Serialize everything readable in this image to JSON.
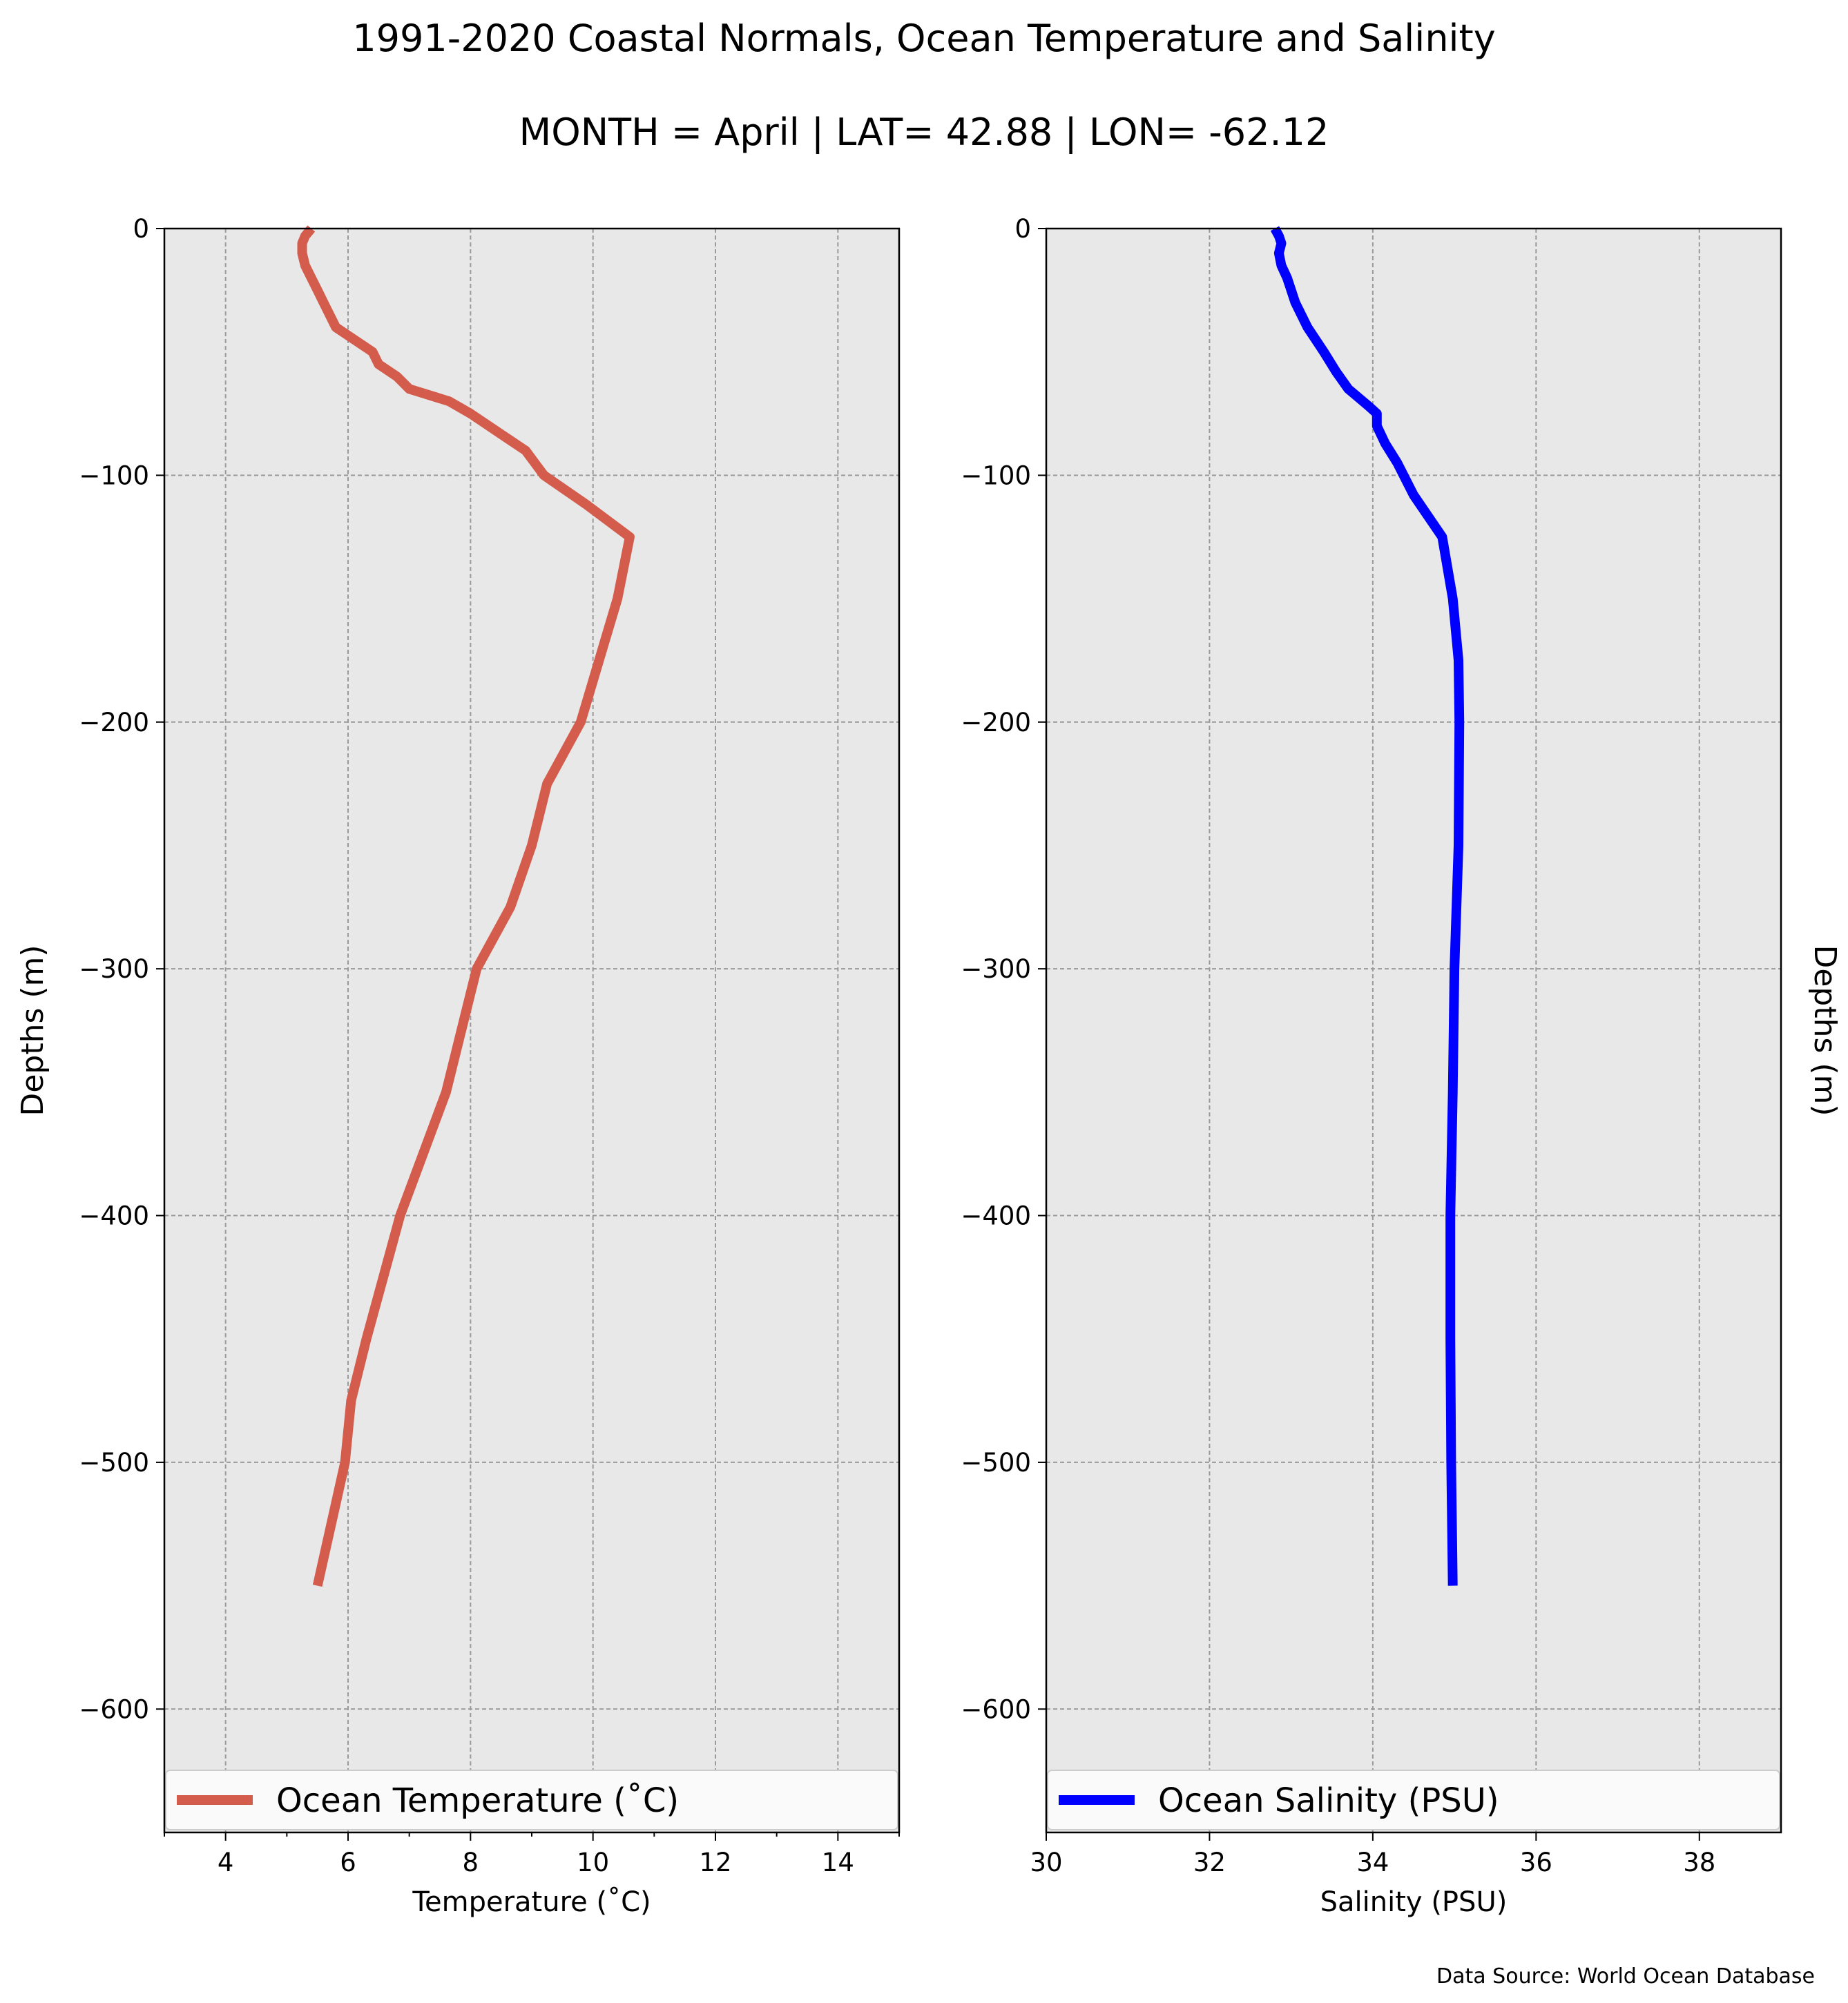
{
  "title": "1991-2020 Coastal Normals, Ocean Temperature and Salinity",
  "subtitle": "MONTH = April | LAT= 42.88 | LON= -62.12",
  "source": "Data Source: World Ocean Database",
  "chart_data": [
    {
      "type": "line",
      "xlabel": "Temperature (˚C)",
      "ylabel": "Depths (m)",
      "xlim": [
        3,
        15
      ],
      "ylim": [
        -650,
        0
      ],
      "xticks": [
        4,
        6,
        8,
        10,
        12,
        14
      ],
      "xtick_labels": [
        "4",
        "6",
        "8",
        "10",
        "12",
        "14"
      ],
      "yticks": [
        0,
        -100,
        -200,
        -300,
        -400,
        -500,
        -600
      ],
      "ytick_labels": [
        "0",
        "−100",
        "−200",
        "−300",
        "−400",
        "−500",
        "−600"
      ],
      "grid": true,
      "legend": "bottom",
      "series": [
        {
          "name": "Ocean Temperature (˚C)",
          "color": "#d35c4c",
          "points": [
            [
              5.4,
              0
            ],
            [
              5.3,
              -3
            ],
            [
              5.25,
              -6
            ],
            [
              5.25,
              -10
            ],
            [
              5.3,
              -15
            ],
            [
              5.4,
              -20
            ],
            [
              5.5,
              -25
            ],
            [
              5.6,
              -30
            ],
            [
              5.8,
              -40
            ],
            [
              6.1,
              -45
            ],
            [
              6.4,
              -50
            ],
            [
              6.5,
              -55
            ],
            [
              6.8,
              -60
            ],
            [
              7.0,
              -65
            ],
            [
              7.65,
              -70
            ],
            [
              8.0,
              -75
            ],
            [
              8.6,
              -85
            ],
            [
              8.9,
              -90
            ],
            [
              9.05,
              -95
            ],
            [
              9.2,
              -100
            ],
            [
              9.9,
              -112
            ],
            [
              10.6,
              -125
            ],
            [
              10.4,
              -150
            ],
            [
              10.1,
              -175
            ],
            [
              9.8,
              -200
            ],
            [
              9.25,
              -225
            ],
            [
              9.0,
              -250
            ],
            [
              8.65,
              -275
            ],
            [
              8.1,
              -300
            ],
            [
              7.85,
              -325
            ],
            [
              7.6,
              -350
            ],
            [
              6.85,
              -400
            ],
            [
              6.3,
              -450
            ],
            [
              6.05,
              -475
            ],
            [
              5.95,
              -500
            ],
            [
              5.5,
              -550
            ]
          ]
        }
      ]
    },
    {
      "type": "line",
      "xlabel": "Salinity (PSU)",
      "ylabel": "Depths (m)",
      "xlim": [
        30,
        39
      ],
      "ylim": [
        -650,
        0
      ],
      "xticks": [
        30,
        32,
        34,
        36,
        38
      ],
      "xtick_labels": [
        "30",
        "32",
        "34",
        "36",
        "38"
      ],
      "yticks": [
        0,
        -100,
        -200,
        -300,
        -400,
        -500,
        -600
      ],
      "ytick_labels": [
        "0",
        "−100",
        "−200",
        "−300",
        "−400",
        "−500",
        "−600"
      ],
      "grid": true,
      "legend": "bottom",
      "series": [
        {
          "name": "Ocean Salinity (PSU)",
          "color": "#0000ff",
          "points": [
            [
              32.8,
              0
            ],
            [
              32.85,
              -3
            ],
            [
              32.88,
              -6
            ],
            [
              32.85,
              -10
            ],
            [
              32.88,
              -15
            ],
            [
              32.95,
              -20
            ],
            [
              33.0,
              -25
            ],
            [
              33.05,
              -30
            ],
            [
              33.2,
              -40
            ],
            [
              33.4,
              -50
            ],
            [
              33.55,
              -58
            ],
            [
              33.7,
              -65
            ],
            [
              33.95,
              -72
            ],
            [
              34.05,
              -75
            ],
            [
              34.05,
              -80
            ],
            [
              34.15,
              -87
            ],
            [
              34.3,
              -95
            ],
            [
              34.5,
              -108
            ],
            [
              34.85,
              -125
            ],
            [
              34.98,
              -150
            ],
            [
              35.05,
              -175
            ],
            [
              35.06,
              -200
            ],
            [
              35.05,
              -250
            ],
            [
              35.0,
              -300
            ],
            [
              34.98,
              -350
            ],
            [
              34.95,
              -400
            ],
            [
              34.95,
              -450
            ],
            [
              34.96,
              -500
            ],
            [
              34.98,
              -550
            ]
          ]
        }
      ]
    }
  ]
}
